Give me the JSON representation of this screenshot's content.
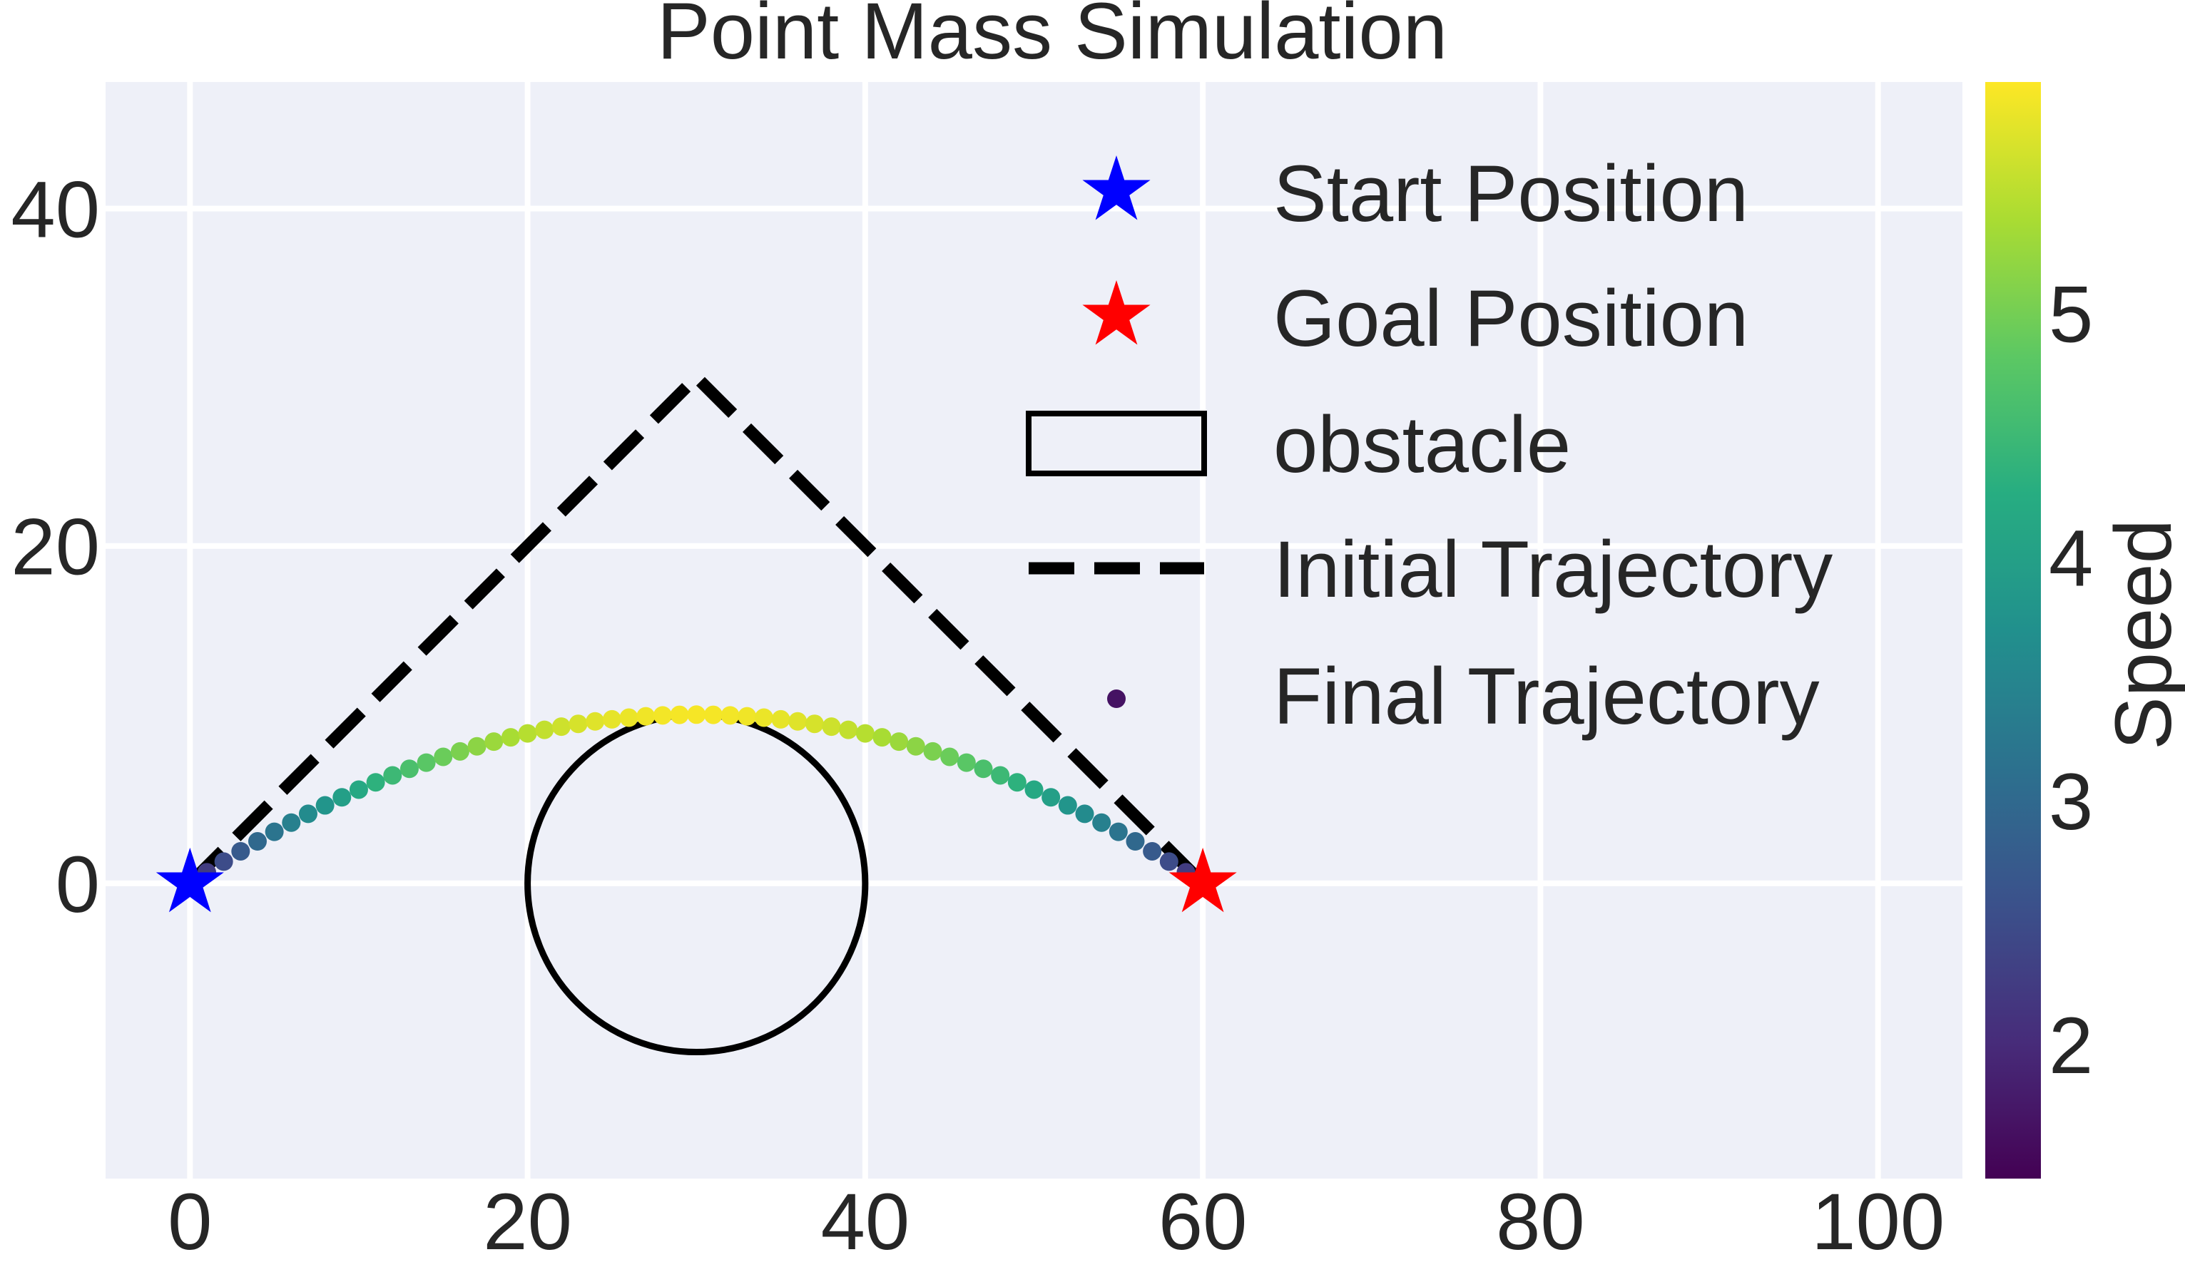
{
  "chart_data": {
    "type": "scatter",
    "title": "Point Mass Simulation",
    "xlabel": "",
    "ylabel": "",
    "xlim": [
      -5,
      105
    ],
    "ylim": [
      -17.5,
      47.5
    ],
    "x_ticks": [
      0,
      20,
      40,
      60,
      80,
      100
    ],
    "y_ticks": [
      0,
      20,
      40
    ],
    "grid": true,
    "legend_position": "top-right",
    "legend": {
      "start": "Start Position",
      "goal": "Goal Position",
      "obstacle": "obstacle",
      "initial": "Initial Trajectory",
      "final": "Final Trajectory"
    },
    "start_position": {
      "x": 0,
      "y": 0
    },
    "goal_position": {
      "x": 60,
      "y": 0
    },
    "obstacle": {
      "center_x": 30,
      "center_y": 0,
      "radius": 10
    },
    "initial_trajectory": {
      "x": [
        0,
        30,
        60
      ],
      "y": [
        0,
        30,
        0
      ]
    },
    "final_trajectory": {
      "n_points": 61,
      "x_start": 0,
      "x_end": 60,
      "peak_x": 30,
      "peak_y": 10,
      "speed_min": 2.0,
      "speed_max": 5.9,
      "description": "parabolic arc from start to goal colored by speed"
    },
    "colorbar": {
      "label": "Speed",
      "min": 1.45,
      "max": 5.95,
      "ticks": [
        2,
        3,
        4,
        5
      ],
      "colormap": "viridis"
    },
    "colors": {
      "plot_bg": "#eef0f8",
      "grid": "#ffffff",
      "start": "#0000ff",
      "goal": "#ff0000",
      "initial": "#000000",
      "obstacle": "#000000",
      "text": "#262626"
    }
  }
}
